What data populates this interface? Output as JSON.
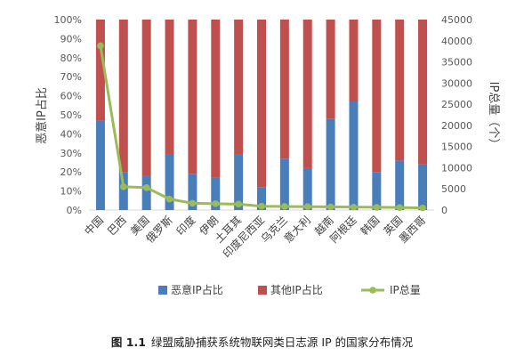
{
  "chart_data": {
    "type": "bar",
    "stacked": true,
    "categories": [
      "中国",
      "巴西",
      "美国",
      "俄罗斯",
      "印度",
      "伊朗",
      "土耳其",
      "印度尼西亚",
      "乌克兰",
      "意大利",
      "越南",
      "阿根廷",
      "韩国",
      "英国",
      "墨西哥"
    ],
    "series": [
      {
        "name": "恶意IP占比",
        "axis": "left",
        "kind": "bar",
        "color": "#4a7ebb",
        "values": [
          0.47,
          0.2,
          0.18,
          0.29,
          0.19,
          0.17,
          0.29,
          0.12,
          0.27,
          0.22,
          0.48,
          0.57,
          0.2,
          0.26,
          0.24
        ]
      },
      {
        "name": "其他IP占比",
        "axis": "left",
        "kind": "bar",
        "color": "#c0504d",
        "values": [
          0.53,
          0.8,
          0.82,
          0.71,
          0.81,
          0.83,
          0.71,
          0.88,
          0.73,
          0.78,
          0.52,
          0.43,
          0.8,
          0.74,
          0.76
        ]
      },
      {
        "name": "IP总量",
        "axis": "right",
        "kind": "line",
        "color": "#9bbb59",
        "values": [
          38800,
          5500,
          5300,
          2600,
          1600,
          1500,
          1400,
          900,
          850,
          800,
          750,
          700,
          650,
          600,
          500
        ]
      }
    ],
    "y_left": {
      "label": "恶意IP占比",
      "ticks": [
        "0%",
        "10%",
        "20%",
        "30%",
        "40%",
        "50%",
        "60%",
        "70%",
        "80%",
        "90%",
        "100%"
      ],
      "range": [
        0,
        1
      ]
    },
    "y_right": {
      "label": "IP总量（个）",
      "ticks": [
        "0",
        "5000",
        "10000",
        "15000",
        "20000",
        "25000",
        "30000",
        "35000",
        "40000",
        "45000"
      ],
      "range": [
        0,
        45000
      ]
    },
    "legend_position": "bottom",
    "grid": false
  },
  "caption": {
    "number": "图 1.1",
    "text": "绿盟威胁捕获系统物联网类日志源 IP 的国家分布情况"
  }
}
